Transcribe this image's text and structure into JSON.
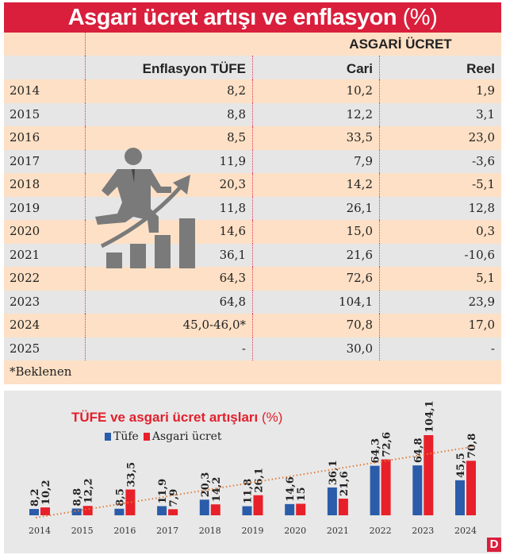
{
  "title": {
    "main": "Asgari ücret artışı ve enflasyon",
    "unit": "(%)"
  },
  "table": {
    "group_header": "ASGARİ ÜCRET",
    "columns": [
      "Enflasyon TÜFE",
      "Cari",
      "Reel"
    ],
    "rows": [
      [
        "2014",
        "8,2",
        "10,2",
        "1,9"
      ],
      [
        "2015",
        "8,8",
        "12,2",
        "3,1"
      ],
      [
        "2016",
        "8,5",
        "33,5",
        "23,0"
      ],
      [
        "2017",
        "11,9",
        "7,9",
        "-3,6"
      ],
      [
        "2018",
        "20,3",
        "14,2",
        "-5,1"
      ],
      [
        "2019",
        "11,8",
        "26,1",
        "12,8"
      ],
      [
        "2020",
        "14,6",
        "15,0",
        "0,3"
      ],
      [
        "2021",
        "36,1",
        "21,6",
        "-10,6"
      ],
      [
        "2022",
        "64,3",
        "72,6",
        "5,1"
      ],
      [
        "2023",
        "64,8",
        "104,1",
        "23,9"
      ],
      [
        "2024",
        "45,0-46,0*",
        "70,8",
        "17,0"
      ],
      [
        "2025",
        "-",
        "30,0",
        "-"
      ]
    ],
    "footnote": "*Beklenen"
  },
  "icon": "businessman-running-up-growth-chart-icon",
  "logo": "D",
  "colors": {
    "title_bg": "#d91f3c",
    "peach": "#fde0c5",
    "gray": "#e6e6e6",
    "tufe": "#2a5caa",
    "asgari": "#e8202a",
    "trend": "#e07b39"
  },
  "chart_data": {
    "type": "bar",
    "title": "TÜFE ve asgari ücret artışları",
    "title_unit": "(%)",
    "categories": [
      "2014",
      "2015",
      "2016",
      "2017",
      "2018",
      "2019",
      "2020",
      "2021",
      "2022",
      "2023",
      "2024"
    ],
    "series": [
      {
        "name": "Tüfe",
        "values": [
          8.2,
          8.8,
          8.5,
          11.9,
          20.3,
          11.8,
          14.6,
          36.1,
          64.3,
          64.8,
          45.5
        ],
        "labels": [
          "8,2",
          "8,8",
          "8,5",
          "11,9",
          "20,3",
          "11,8",
          "14,6",
          "36,1",
          "64,3",
          "64,8",
          "45,5"
        ]
      },
      {
        "name": "Asgari ücret",
        "values": [
          10.2,
          12.2,
          33.5,
          7.9,
          14.2,
          26.1,
          15,
          21.6,
          72.6,
          104.1,
          70.8
        ],
        "labels": [
          "10,2",
          "12,2",
          "33,5",
          "7,9",
          "14,2",
          "26,1",
          "15",
          "21,6",
          "72,6",
          "104,1",
          "70,8"
        ]
      }
    ],
    "trendline": "dotted linear",
    "legend": "top-left",
    "grid": false
  }
}
